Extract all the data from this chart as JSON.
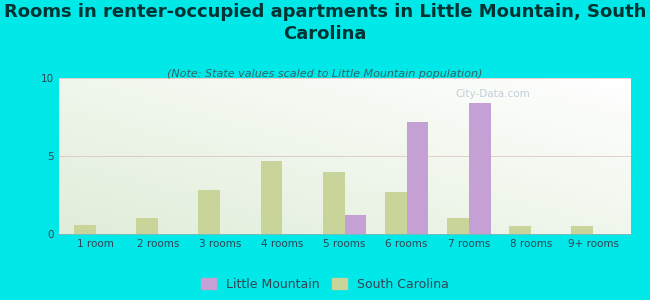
{
  "title": "Rooms in renter-occupied apartments in Little Mountain, South\nCarolina",
  "subtitle": "(Note: State values scaled to Little Mountain population)",
  "categories": [
    "1 room",
    "2 rooms",
    "3 rooms",
    "4 rooms",
    "5 rooms",
    "6 rooms",
    "7 rooms",
    "8 rooms",
    "9+ rooms"
  ],
  "little_mountain": [
    0,
    0,
    0,
    0,
    1.2,
    7.2,
    8.4,
    0,
    0
  ],
  "south_carolina": [
    0.6,
    1.0,
    2.8,
    4.7,
    4.0,
    2.7,
    1.0,
    0.5,
    0.5
  ],
  "lm_color": "#c4a0d4",
  "sc_color": "#c8d49a",
  "background_color": "#00e8e8",
  "ylim": [
    0,
    10
  ],
  "yticks": [
    0,
    5,
    10
  ],
  "bar_width": 0.35,
  "legend_lm": "Little Mountain",
  "legend_sc": "South Carolina",
  "title_fontsize": 13,
  "subtitle_fontsize": 8,
  "tick_fontsize": 7.5,
  "legend_fontsize": 9
}
